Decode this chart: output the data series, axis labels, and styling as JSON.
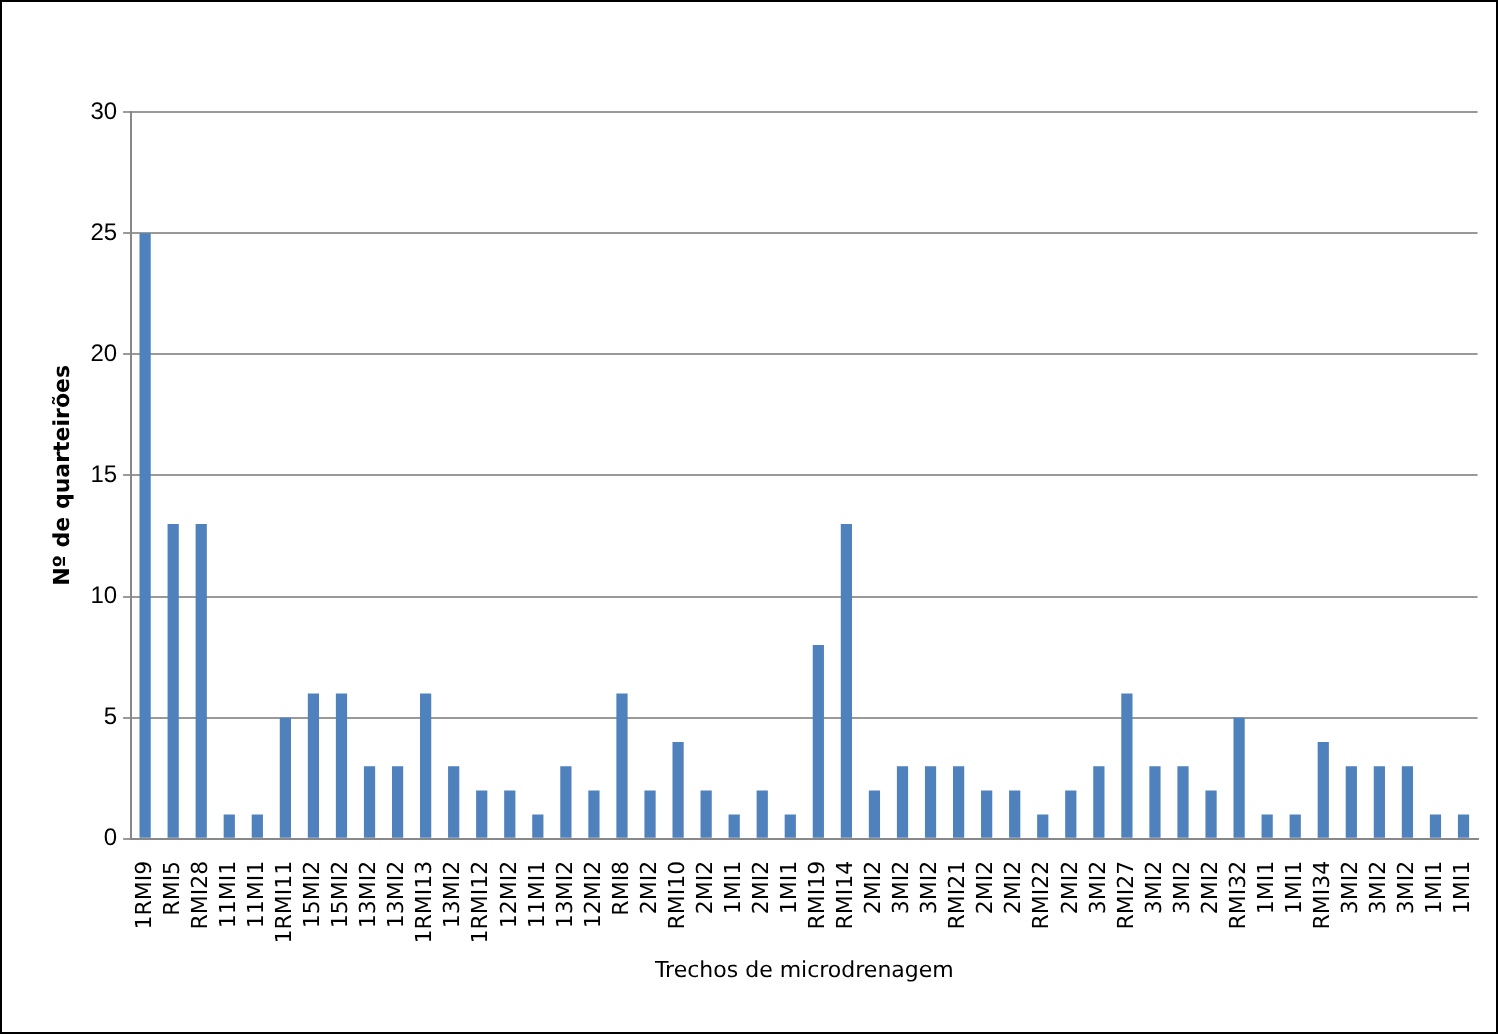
{
  "chart_data": {
    "type": "bar",
    "xlabel": "Trechos de microdrenagem",
    "ylabel": "Nº de quarteirões",
    "categories": [
      "1RMI9",
      "RMI5",
      "RMI28",
      "11MI1",
      "11MI1",
      "1RMI11",
      "15MI2",
      "15MI2",
      "13MI2",
      "13MI2",
      "1RMI13",
      "13MI2",
      "1RMI12",
      "12MI2",
      "11MI1",
      "13MI2",
      "12MI2",
      "RMI8",
      "2MI2",
      "RMI10",
      "2MI2",
      "1MI1",
      "2MI2",
      "1MI1",
      "RMI19",
      "RMI14",
      "2MI2",
      "3MI2",
      "3MI2",
      "RMI21",
      "2MI2",
      "2MI2",
      "RMI22",
      "2MI2",
      "3MI2",
      "RMI27",
      "3MI2",
      "3MI2",
      "2MI2",
      "RMI32",
      "1MI1",
      "1MI1",
      "RMI34",
      "3MI2",
      "3MI2",
      "3MI2",
      "1MI1",
      "1MI1"
    ],
    "values": [
      25,
      13,
      13,
      1,
      1,
      5,
      6,
      6,
      3,
      3,
      6,
      3,
      2,
      2,
      1,
      3,
      2,
      6,
      2,
      4,
      2,
      1,
      2,
      1,
      8,
      13,
      2,
      3,
      3,
      3,
      2,
      2,
      1,
      2,
      3,
      6,
      3,
      3,
      2,
      5,
      1,
      1,
      4,
      3,
      3,
      3,
      1,
      1
    ],
    "color": "#4f81bd",
    "ylim": [
      0,
      30
    ],
    "yticks": [
      0,
      5,
      10,
      15,
      20,
      25,
      30
    ],
    "grid": "y"
  }
}
